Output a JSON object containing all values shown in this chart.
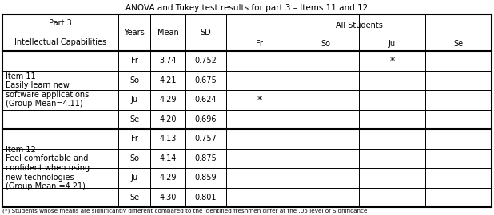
{
  "title": "ANOVA and Tukey test results for part 3 – Items 11 and 12",
  "all_students_label": "All Students",
  "col0_header": "Part 3\n\nIntellectual Capabilities",
  "years_header": "Years",
  "mean_header": "Mean",
  "sd_header": "SD",
  "sub_cols": [
    "Fr",
    "So",
    "Ju",
    "Se"
  ],
  "item11_label": "Item 11\nEasily learn new\nsoftware applications\n(Group Mean=4.11)",
  "item12_label": "Item 12\nFeel comfortable and\nconfident when using\nnew technologies\n(Group Mean =4.21)",
  "item11_rows": [
    {
      "year": "Fr",
      "mean": "3.74",
      "sd": "0.752",
      "sig": [
        false,
        false,
        true,
        false
      ]
    },
    {
      "year": "So",
      "mean": "4.21",
      "sd": "0.675",
      "sig": [
        false,
        false,
        false,
        false
      ]
    },
    {
      "year": "Ju",
      "mean": "4.29",
      "sd": "0.624",
      "sig": [
        true,
        false,
        false,
        false
      ]
    },
    {
      "year": "Se",
      "mean": "4.20",
      "sd": "0.696",
      "sig": [
        false,
        false,
        false,
        false
      ]
    }
  ],
  "item12_rows": [
    {
      "year": "Fr",
      "mean": "4.13",
      "sd": "0.757",
      "sig": [
        false,
        false,
        false,
        false
      ]
    },
    {
      "year": "So",
      "mean": "4.14",
      "sd": "0.875",
      "sig": [
        false,
        false,
        false,
        false
      ]
    },
    {
      "year": "Ju",
      "mean": "4.29",
      "sd": "0.859",
      "sig": [
        false,
        false,
        false,
        false
      ]
    },
    {
      "year": "Se",
      "mean": "4.30",
      "sd": "0.801",
      "sig": [
        false,
        false,
        false,
        false
      ]
    }
  ],
  "footnote": "(*) Students whose means are significantly different compared to the identified freshmen differ at the .05 level of Significance",
  "bg_color": "#ffffff",
  "text_color": "#000000",
  "font_size": 7.0,
  "title_font_size": 7.5
}
